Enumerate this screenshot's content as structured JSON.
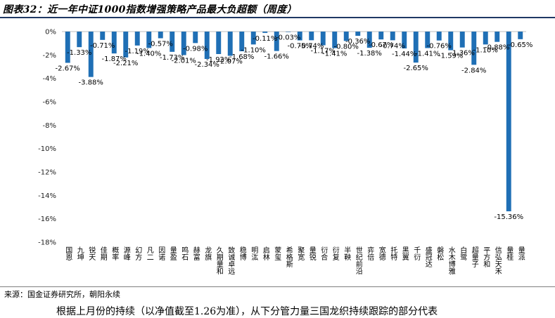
{
  "figure_title": "图表32：近一年中证1000指数增强策略产品最大负超额（周度）",
  "source_note": "来源：国金证券研究所，朝阳永续",
  "body_text": "根据上月份的持续（以净值截至1.26为准），从下分管力量三国龙织持续跟踪的部分代表",
  "colors": {
    "bar": "#1f6fb5",
    "title_rule": "#1f3864",
    "axis": "#bfbfbf"
  },
  "chart_data": {
    "type": "bar",
    "title": "",
    "xlabel": "",
    "ylabel": "",
    "ylim": [
      -18,
      0
    ],
    "yticks": [
      0,
      -2,
      -4,
      -6,
      -8,
      -10,
      -12,
      -14,
      -16,
      -18
    ],
    "ytick_labels": [
      "0%",
      "-2%",
      "-4%",
      "-6%",
      "-8%",
      "-10%",
      "-12%",
      "-14%",
      "-16%",
      "-18%"
    ],
    "grid": false,
    "legend": "none",
    "categories": [
      "国恩",
      "九坤",
      "锐天",
      "佳期",
      "概率",
      "源峰",
      "幻方",
      "凡二",
      "因诺",
      "量盈",
      "鸣石",
      "赫富",
      "龙旗",
      "久期量和",
      "致诚卓远",
      "稳博",
      "明汯",
      "启林",
      "蒙玺",
      "希格斯",
      "聚宽",
      "量锐",
      "衍合",
      "衍复",
      "半鞅",
      "世纪前沿",
      "弈倍",
      "宽德",
      "托特",
      "黑翼",
      "千衍",
      "盛冠达",
      "磐松",
      "水木博雅",
      "白鹭",
      "超量子",
      "平方和",
      "信弘天禾",
      "量桂",
      "量派"
    ],
    "values": [
      -2.67,
      -1.33,
      -3.88,
      -0.71,
      -1.87,
      -2.21,
      -1.19,
      -1.4,
      -0.57,
      -1.73,
      -2.01,
      -0.98,
      -2.34,
      -1.92,
      -2.07,
      -1.68,
      -1.1,
      -0.11,
      -1.66,
      -0.03,
      -0.75,
      -0.74,
      -1.17,
      -1.41,
      -0.8,
      -0.36,
      -1.38,
      -0.67,
      -0.74,
      -1.44,
      -2.65,
      -1.41,
      -0.76,
      -1.59,
      -1.36,
      -2.84,
      -1.1,
      -0.88,
      -15.36,
      -0.65
    ],
    "value_labels": [
      "-2.67%",
      "-1.33%",
      "-3.88%",
      "-0.71%",
      "-1.87%",
      "-2.21%",
      "-1.19%",
      "-1.40%",
      "-0.57%",
      "-1.73%",
      "-2.01%",
      "-0.98%",
      "-2.34%",
      "-1.92%",
      "-2.07%",
      "-1.68%",
      "-1.10%",
      "-0.11%",
      "-1.66%",
      "-0.03%",
      "-0.75%",
      "-0.74%",
      "-1.17%",
      "-1.41%",
      "-0.80%",
      "-0.36%",
      "-1.38%",
      "-0.67%",
      "-0.74%",
      "-1.44%",
      "-2.65%",
      "-1.41%",
      "-0.76%",
      "-1.59%",
      "-1.36%",
      "-2.84%",
      "-1.10%",
      "-0.88%",
      "-15.36%",
      "-0.65%"
    ]
  }
}
